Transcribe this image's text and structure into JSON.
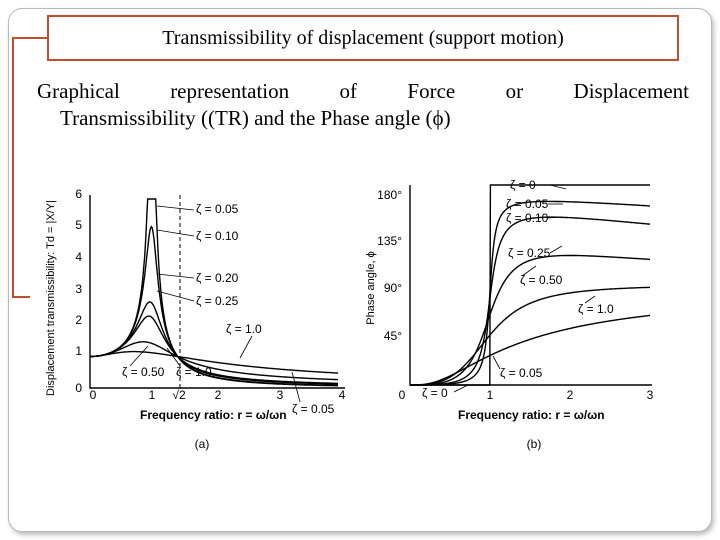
{
  "slide": {
    "title": "Transmissibility of displacement (support motion)",
    "body_line1_words": [
      "Graphical",
      "representation",
      "of",
      "Force",
      "or",
      "Displacement"
    ],
    "body_line2": "Transmissibility ((TR) and the Phase angle (ϕ)"
  },
  "chart_data": [
    {
      "type": "line",
      "panel_label": "(a)",
      "xlabel": "Frequency ratio: r = ω/ωn",
      "ylabel": "Displacement transmissibility: Td = |X/Y|",
      "xlim": [
        0,
        4
      ],
      "ylim": [
        0,
        6
      ],
      "x_ticks": [
        "0",
        "1",
        "√2",
        "2",
        "3",
        "4"
      ],
      "y_ticks": [
        "0",
        "1",
        "2",
        "3",
        "4",
        "5",
        "6"
      ],
      "series": [
        {
          "name": "ζ = 0.05",
          "zeta": 0.05
        },
        {
          "name": "ζ = 0.10",
          "zeta": 0.1
        },
        {
          "name": "ζ = 0.20",
          "zeta": 0.2
        },
        {
          "name": "ζ = 0.25",
          "zeta": 0.25
        },
        {
          "name": "ζ = 0.50",
          "zeta": 0.5
        },
        {
          "name": "ζ = 1.0",
          "zeta": 1.0
        }
      ],
      "annotations": [
        "ζ = 0.05",
        "ζ = 0.10",
        "ζ = 0.20",
        "ζ = 0.25",
        "ζ = 1.0",
        "ζ = 0.50",
        "ζ = 1.0",
        "ζ = 0.05"
      ],
      "grid": false
    },
    {
      "type": "line",
      "panel_label": "(b)",
      "xlabel": "Frequency ratio: r = ω/ωn",
      "ylabel": "Phase angle, ϕ",
      "xlim": [
        0,
        3
      ],
      "ylim": [
        0,
        180
      ],
      "x_ticks": [
        "0",
        "1",
        "2",
        "3"
      ],
      "y_ticks": [
        "45°",
        "90°",
        "135°",
        "180°"
      ],
      "series": [
        {
          "name": "ζ = 0",
          "zeta": 0
        },
        {
          "name": "ζ = 0.05",
          "zeta": 0.05
        },
        {
          "name": "ζ = 0.10",
          "zeta": 0.1
        },
        {
          "name": "ζ = 0.25",
          "zeta": 0.25
        },
        {
          "name": "ζ = 0.50",
          "zeta": 0.5
        },
        {
          "name": "ζ = 1.0",
          "zeta": 1.0
        }
      ],
      "annotations": [
        "ζ = 0",
        "ζ = 0.05",
        "ζ = 0.10",
        "ζ = 0.25",
        "ζ = 0.50",
        "ζ = 1.0",
        "ζ = 0",
        "ζ = 0.05"
      ],
      "grid": false
    }
  ],
  "colors": {
    "accent": "#c0502d",
    "frame": "#b9b9b9",
    "curve": "#000000"
  }
}
